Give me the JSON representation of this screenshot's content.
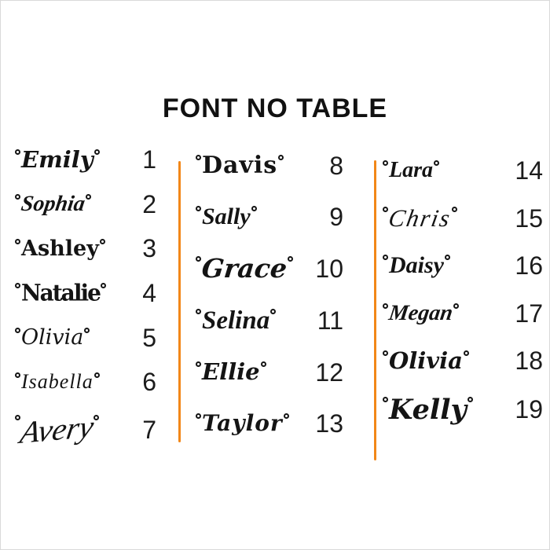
{
  "page": {
    "background": "#ffffff",
    "ink_color": "#141414",
    "divider_color": "#f28718"
  },
  "title": "FONT NO TABLE",
  "columns": [
    {
      "items": [
        {
          "name": "Emily",
          "no": "1",
          "font_style": "script-bold"
        },
        {
          "name": "Sophia",
          "no": "2",
          "font_style": "script-slant"
        },
        {
          "name": "Ashley",
          "no": "3",
          "font_style": "slab"
        },
        {
          "name": "Natalie",
          "no": "4",
          "font_style": "blackletter"
        },
        {
          "name": "Olivia",
          "no": "5",
          "font_style": "script-light"
        },
        {
          "name": "Isabella",
          "no": "6",
          "font_style": "script-mono"
        },
        {
          "name": "Avery",
          "no": "7",
          "font_style": "signature"
        }
      ]
    },
    {
      "items": [
        {
          "name": "Davis",
          "no": "8",
          "font_style": "fantasy"
        },
        {
          "name": "Sally",
          "no": "9",
          "font_style": "script-bold2"
        },
        {
          "name": "Grace",
          "no": "10",
          "font_style": "script-elegant"
        },
        {
          "name": "Selina",
          "no": "11",
          "font_style": "script-elegant2"
        },
        {
          "name": "Ellie",
          "no": "12",
          "font_style": "script-bold"
        },
        {
          "name": "Taylor",
          "no": "13",
          "font_style": "script-retro"
        }
      ]
    },
    {
      "items": [
        {
          "name": "Lara",
          "no": "14",
          "font_style": "script-small"
        },
        {
          "name": "Chris",
          "no": "15",
          "font_style": "script-medium"
        },
        {
          "name": "Daisy",
          "no": "16",
          "font_style": "script-bold2"
        },
        {
          "name": "Megan",
          "no": "17",
          "font_style": "script-slant"
        },
        {
          "name": "Olivia",
          "no": "18",
          "font_style": "script-bold"
        },
        {
          "name": "Kelly",
          "no": "19",
          "font_style": "script-heavy"
        }
      ]
    }
  ]
}
